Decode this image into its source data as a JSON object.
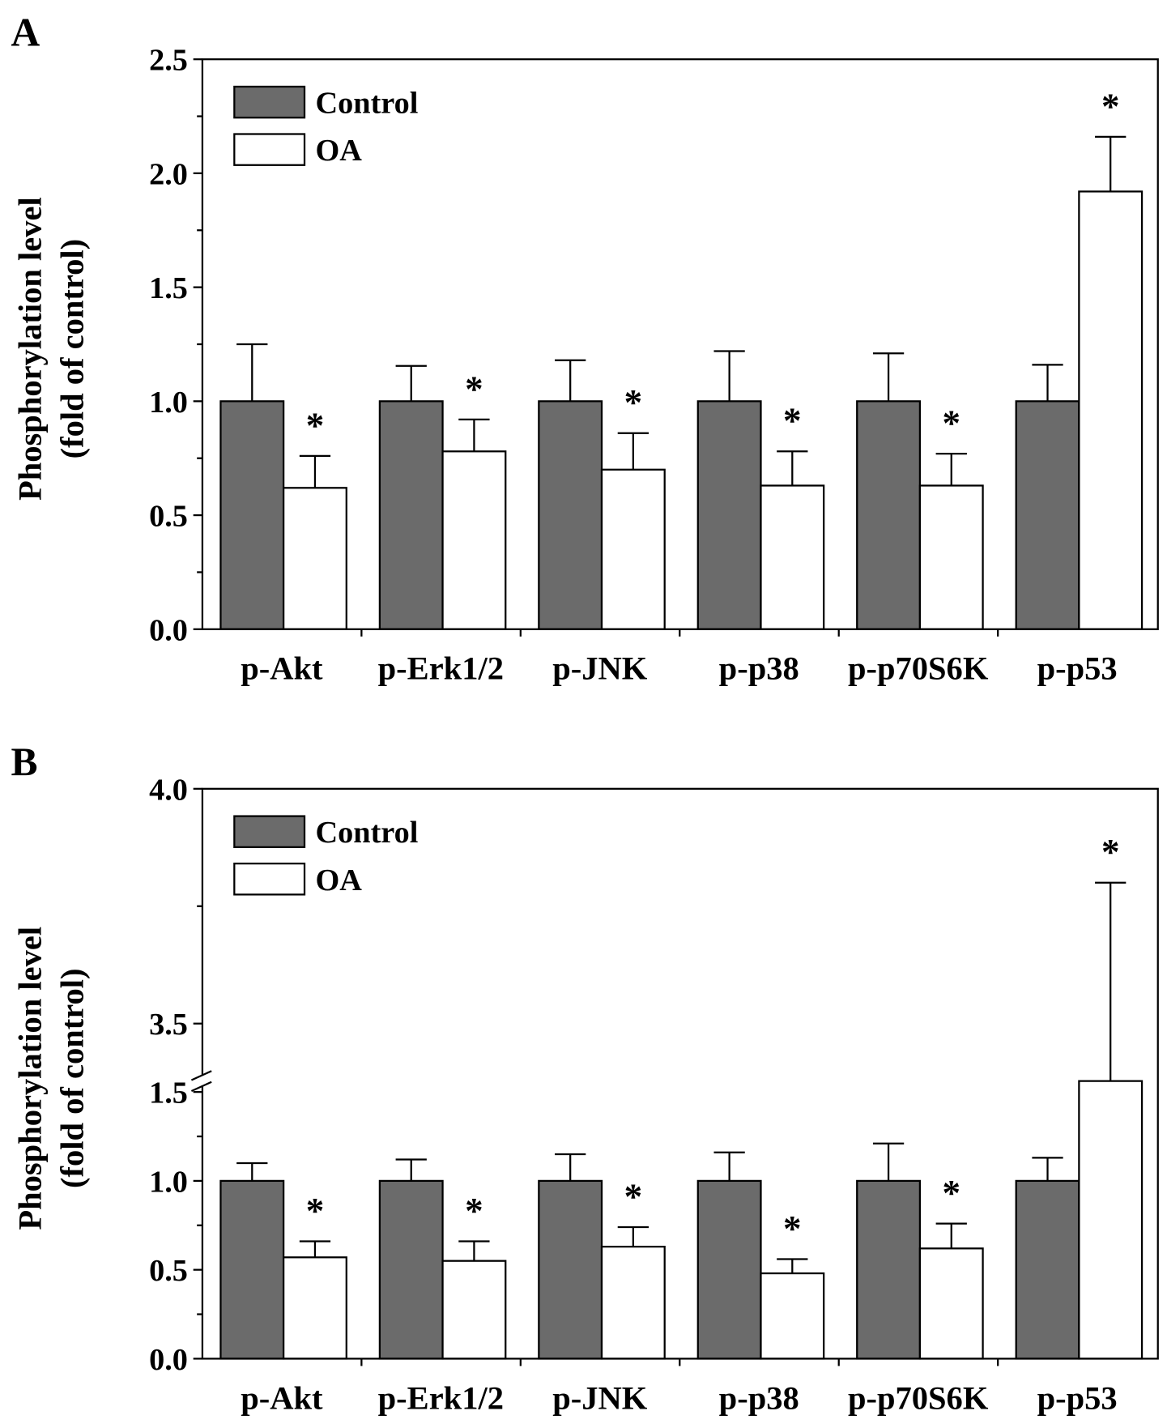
{
  "chart_data": [
    {
      "panel_label": "A",
      "type": "bar",
      "ylabel": [
        "Phosphorylation level",
        "(fold of control)"
      ],
      "categories": [
        "p-Akt",
        "p-Erk1/2",
        "p-JNK",
        "p-p38",
        "p-p70S6K",
        "p-p53"
      ],
      "ylim": [
        0,
        2.5
      ],
      "yticks": [
        "0.0",
        "0.5",
        "1.0",
        "1.5",
        "2.0",
        "2.5"
      ],
      "legend": {
        "placement": "top-left"
      },
      "series": [
        {
          "name": "Control",
          "color": "#6b6b6b",
          "values": [
            1.0,
            1.0,
            1.0,
            1.0,
            1.0,
            1.0
          ],
          "error_upper": [
            1.25,
            1.155,
            1.18,
            1.22,
            1.21,
            1.16
          ]
        },
        {
          "name": "OA",
          "color": "#ffffff",
          "values": [
            0.62,
            0.78,
            0.7,
            0.63,
            0.63,
            1.92
          ],
          "error_upper": [
            0.76,
            0.92,
            0.86,
            0.78,
            0.77,
            2.16
          ]
        }
      ],
      "significance": [
        "*",
        "*",
        "*",
        "*",
        "*",
        "*"
      ]
    },
    {
      "panel_label": "B",
      "type": "bar",
      "ylabel": [
        "Phosphorylation level",
        "(fold of control)"
      ],
      "categories": [
        "p-Akt",
        "p-Erk1/2",
        "p-JNK",
        "p-p38",
        "p-p70S6K",
        "p-p53"
      ],
      "ylim": [
        0,
        4.0
      ],
      "axis_break": [
        1.5,
        3.5
      ],
      "yticks": [
        "0.0",
        "0.5",
        "1.0",
        "1.5",
        "3.5",
        "4.0"
      ],
      "legend": {
        "placement": "top-left"
      },
      "series": [
        {
          "name": "Control",
          "color": "#6b6b6b",
          "values": [
            1.0,
            1.0,
            1.0,
            1.0,
            1.0,
            1.0
          ],
          "error_upper": [
            1.1,
            1.12,
            1.15,
            1.16,
            1.21,
            1.13
          ]
        },
        {
          "name": "OA",
          "color": "#ffffff",
          "values": [
            0.57,
            0.55,
            0.63,
            0.48,
            0.62,
            3.49
          ],
          "error_upper": [
            0.66,
            0.66,
            0.74,
            0.56,
            0.76,
            3.8
          ]
        }
      ],
      "significance": [
        "*",
        "*",
        "*",
        "*",
        "*",
        "*"
      ]
    }
  ]
}
